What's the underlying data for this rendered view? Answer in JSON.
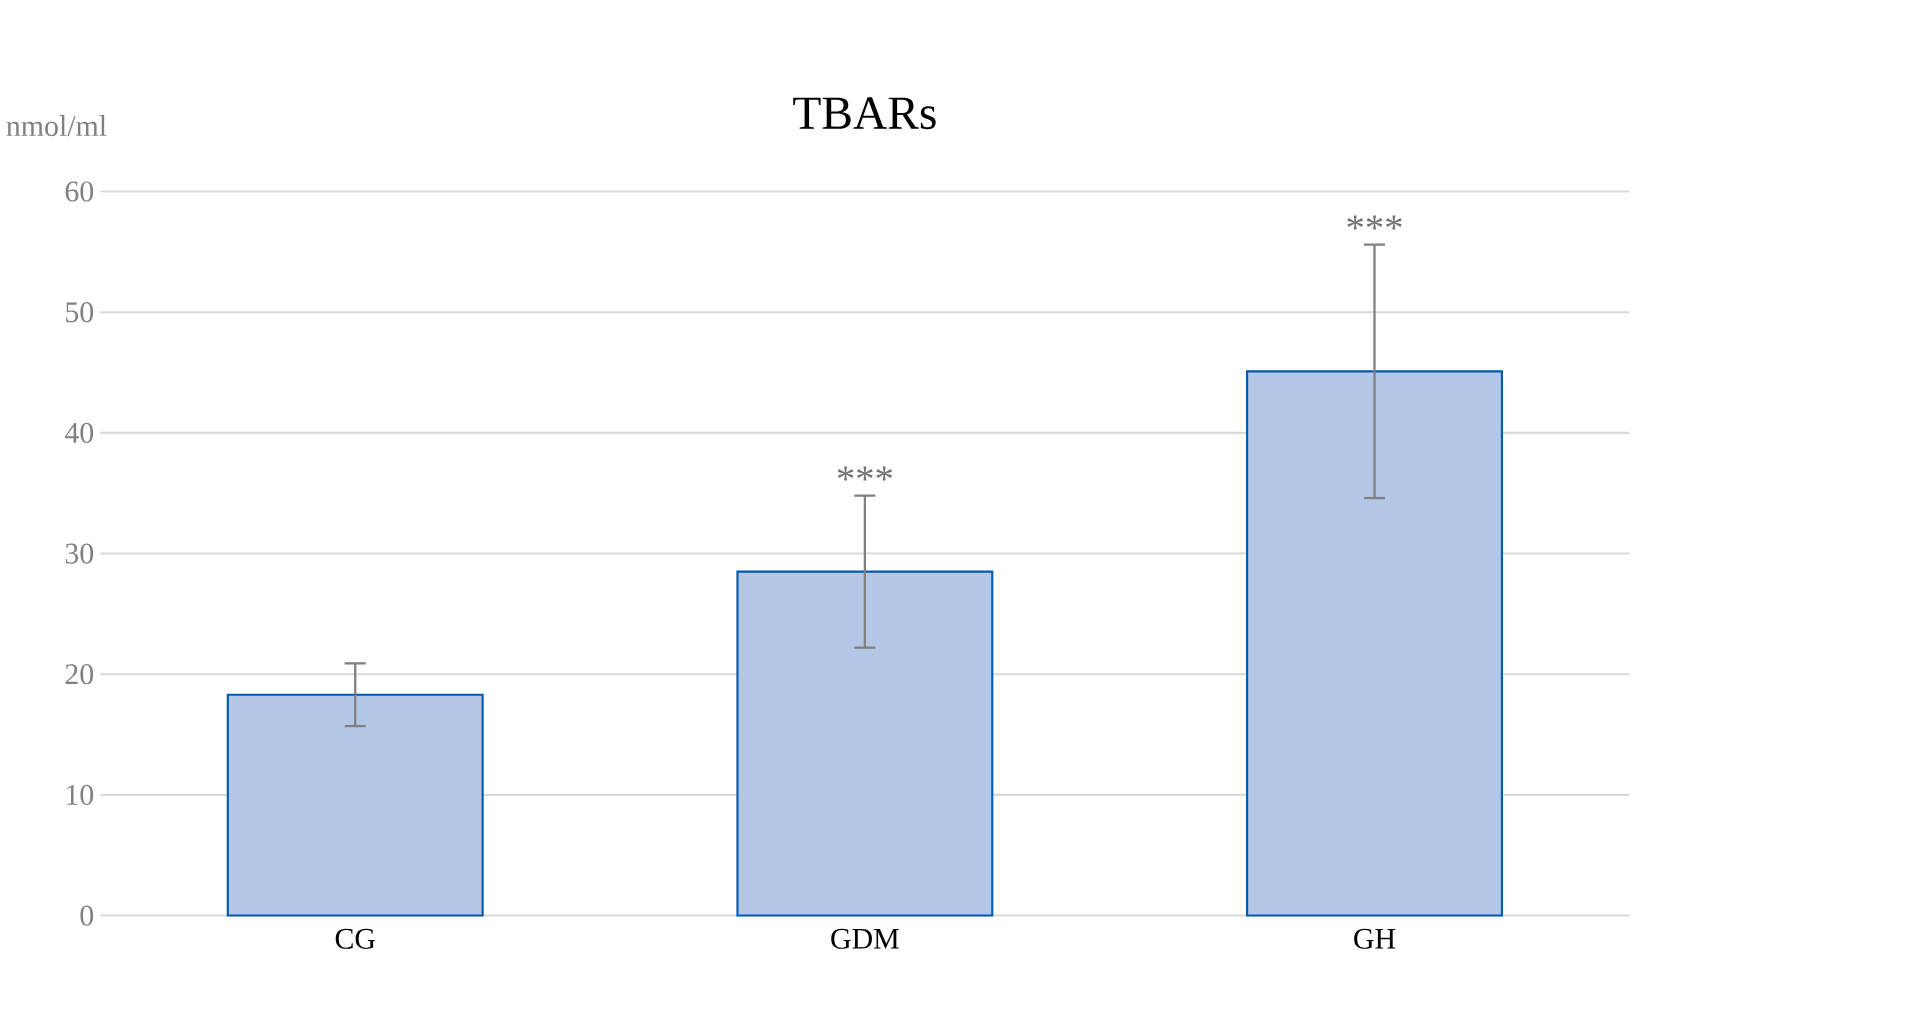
{
  "chart_data": {
    "type": "bar",
    "title": "TBARs",
    "ylabel": "nmol/ml",
    "categories": [
      "CG",
      "GDM",
      "GH"
    ],
    "values": [
      18.3,
      28.5,
      45.1
    ],
    "errors": [
      2.6,
      6.3,
      10.5
    ],
    "color": "#b4c7e7",
    "ylim": [
      0,
      60
    ],
    "yticks": [
      0,
      10,
      20,
      30,
      40,
      50,
      60
    ],
    "grid": "y",
    "annotations": [
      {
        "text": "***",
        "x": "GDM",
        "y": 34.8
      },
      {
        "text": "***",
        "x": "GH",
        "y": 55.6
      }
    ]
  }
}
